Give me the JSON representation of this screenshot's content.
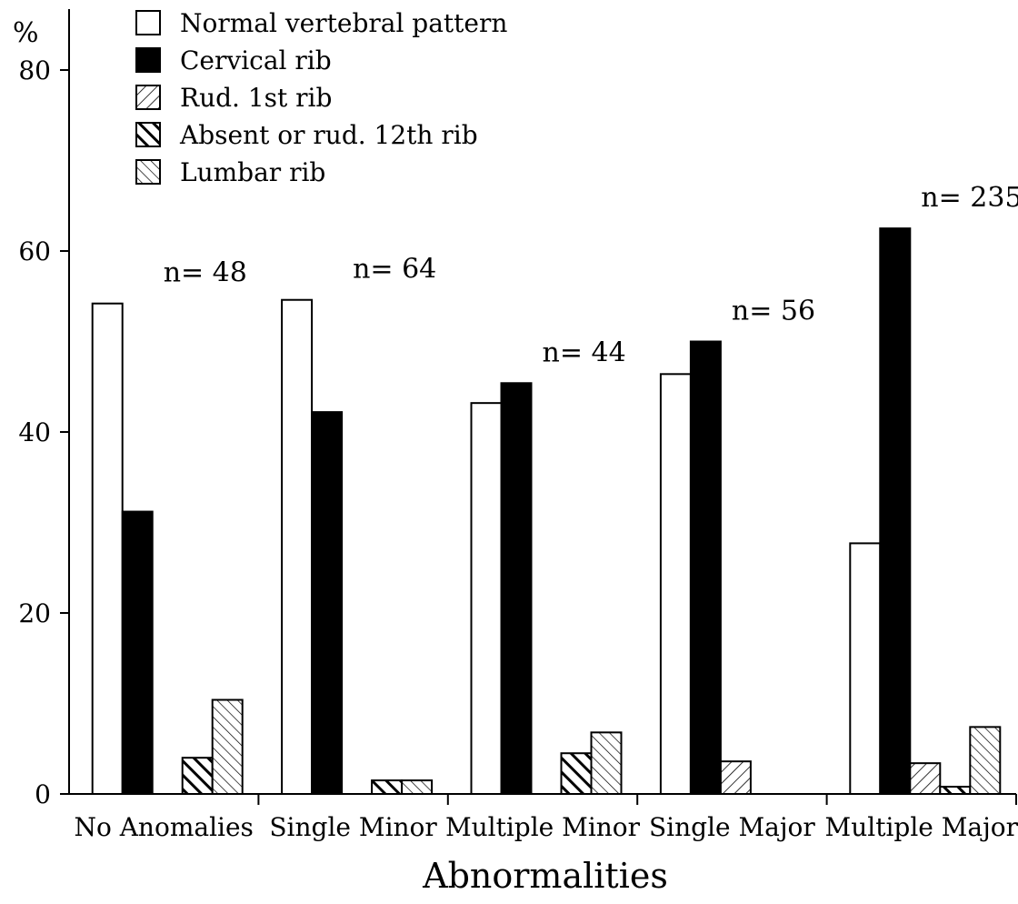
{
  "chart_data": {
    "type": "bar",
    "title": "",
    "xlabel": "Abnormalities",
    "ylabel": "%",
    "ylim": [
      0,
      85
    ],
    "yticks": [
      0,
      20,
      40,
      60,
      80
    ],
    "grid": false,
    "legend_position": "top-left",
    "categories": [
      "No Anomalies",
      "Single Minor",
      "Multiple Minor",
      "Single Major",
      "Multiple Major"
    ],
    "group_labels": [
      "n= 48",
      "n= 64",
      "n= 44",
      "n= 56",
      "n= 235"
    ],
    "series": [
      {
        "name": "Normal vertebral pattern",
        "pattern": "white",
        "values": [
          54.2,
          54.6,
          43.2,
          46.4,
          27.7
        ]
      },
      {
        "name": "Cervical rib",
        "pattern": "black",
        "values": [
          31.2,
          42.2,
          45.4,
          50.0,
          62.5
        ]
      },
      {
        "name": "Rud. 1st rib",
        "pattern": "hatch-fine",
        "values": [
          0,
          0,
          0,
          3.6,
          3.4
        ]
      },
      {
        "name": "Absent or rud. 12th rib",
        "pattern": "hatch-bold",
        "values": [
          4.0,
          1.5,
          4.5,
          0,
          0.8
        ]
      },
      {
        "name": "Lumbar rib",
        "pattern": "hatch-back",
        "values": [
          10.4,
          1.5,
          6.8,
          0,
          7.4
        ]
      }
    ]
  }
}
